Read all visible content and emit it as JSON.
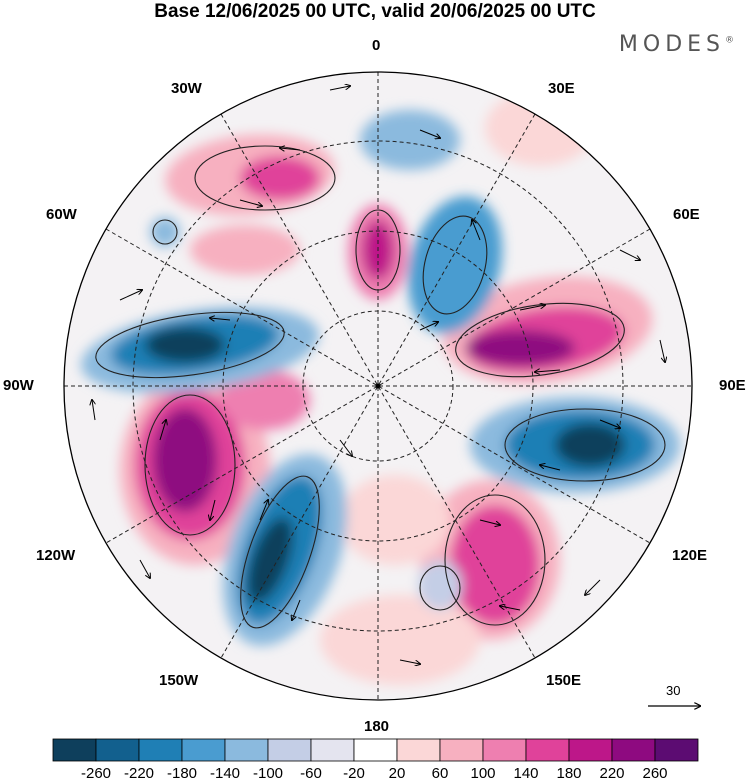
{
  "title": "Base 12/06/2025 00 UTC, valid 20/06/2025 00 UTC",
  "logo": "MODES",
  "logo_mark": "®",
  "longitude_labels": {
    "l0": "0",
    "l30e": "30E",
    "l60e": "60E",
    "l90e": "90E",
    "l120e": "120E",
    "l150e": "150E",
    "l180": "180",
    "l150w": "150W",
    "l120w": "120W",
    "l90w": "90W",
    "l60w": "60W",
    "l30w": "30W"
  },
  "reference_vector": {
    "label": "30"
  },
  "colorbar": {
    "labels": [
      "-260",
      "-220",
      "-180",
      "-140",
      "-100",
      "-60",
      "-20",
      "20",
      "60",
      "100",
      "140",
      "180",
      "220",
      "260"
    ],
    "colors": [
      "#0e3f5c",
      "#12608e",
      "#1f7fb5",
      "#4a9cd0",
      "#8bbade",
      "#c4cee6",
      "#e4e4ef",
      "#ffffff",
      "#fbd7d7",
      "#f7b0c0",
      "#ee7fb0",
      "#e0429a",
      "#bd1789",
      "#8e0a80",
      "#5c0c72"
    ]
  }
}
